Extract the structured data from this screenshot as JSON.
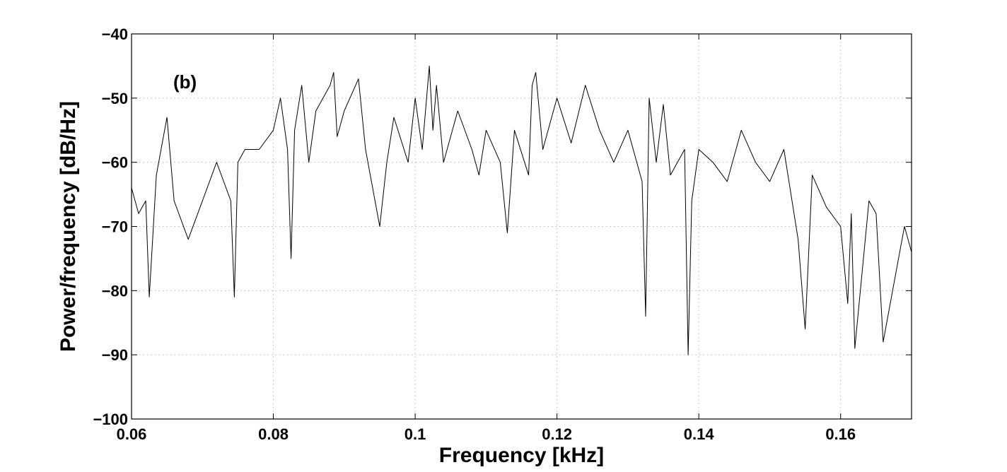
{
  "chart_data": {
    "type": "line",
    "panel_label": "(b)",
    "xlabel": "Frequency [kHz]",
    "ylabel": "Power/frequency [dB/Hz]",
    "xlim": [
      0.06,
      0.17
    ],
    "ylim": [
      -100,
      -40
    ],
    "x_ticks": [
      0.06,
      0.08,
      0.1,
      0.12,
      0.14,
      0.16
    ],
    "x_tick_labels": [
      "0.06",
      "0.08",
      "0.1",
      "0.12",
      "0.14",
      "0.16"
    ],
    "y_ticks": [
      -100,
      -90,
      -80,
      -70,
      -60,
      -50,
      -40
    ],
    "y_tick_labels": [
      "−100",
      "−90",
      "−80",
      "−70",
      "−60",
      "−50",
      "−40"
    ],
    "grid": true,
    "line_color": "#000000",
    "series": [
      {
        "x": [
          0.06,
          0.061,
          0.062,
          0.0625,
          0.0635,
          0.065,
          0.066,
          0.068,
          0.07,
          0.072,
          0.074,
          0.0745,
          0.075,
          0.076,
          0.078,
          0.08,
          0.081,
          0.082,
          0.0825,
          0.083,
          0.084,
          0.085,
          0.086,
          0.088,
          0.0885,
          0.089,
          0.09,
          0.092,
          0.093,
          0.095,
          0.096,
          0.097,
          0.099,
          0.1,
          0.101,
          0.102,
          0.1025,
          0.103,
          0.104,
          0.106,
          0.108,
          0.109,
          0.11,
          0.112,
          0.113,
          0.114,
          0.116,
          0.1165,
          0.117,
          0.118,
          0.12,
          0.122,
          0.124,
          0.126,
          0.128,
          0.13,
          0.132,
          0.1325,
          0.133,
          0.134,
          0.135,
          0.136,
          0.138,
          0.1385,
          0.139,
          0.14,
          0.142,
          0.144,
          0.146,
          0.148,
          0.15,
          0.152,
          0.154,
          0.155,
          0.156,
          0.158,
          0.16,
          0.161,
          0.1615,
          0.162,
          0.164,
          0.165,
          0.166,
          0.168,
          0.169,
          0.17
        ],
        "y": [
          -64,
          -68,
          -66,
          -81,
          -62,
          -53,
          -66,
          -72,
          -66,
          -60,
          -66,
          -81,
          -60,
          -58,
          -58,
          -55,
          -50,
          -58,
          -75,
          -55,
          -48,
          -60,
          -52,
          -48,
          -46,
          -56,
          -52,
          -47,
          -58,
          -70,
          -60,
          -53,
          -60,
          -50,
          -58,
          -45,
          -55,
          -48,
          -60,
          -52,
          -58,
          -62,
          -55,
          -60,
          -71,
          -55,
          -62,
          -48,
          -46,
          -58,
          -50,
          -57,
          -48,
          -55,
          -60,
          -55,
          -63,
          -84,
          -50,
          -60,
          -51,
          -62,
          -58,
          -90,
          -66,
          -58,
          -60,
          -63,
          -55,
          -60,
          -63,
          -58,
          -72,
          -86,
          -62,
          -67,
          -70,
          -82,
          -68,
          -89,
          -66,
          -68,
          -88,
          -76,
          -70,
          -74
        ]
      }
    ]
  }
}
